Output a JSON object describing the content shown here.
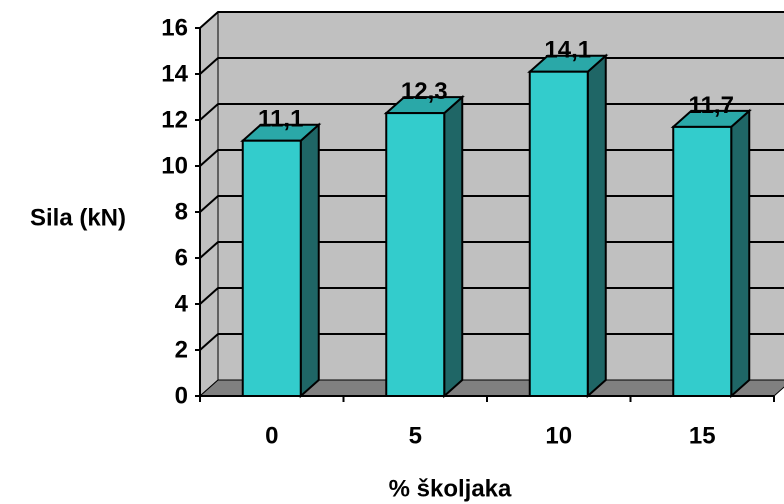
{
  "chart_data": {
    "type": "bar",
    "title": "",
    "xlabel": "% školjaka",
    "ylabel": "Sila (kN)",
    "categories": [
      "0",
      "5",
      "10",
      "15"
    ],
    "values": [
      11.1,
      12.3,
      14.1,
      11.7
    ],
    "data_labels": [
      "11,1",
      "12,3",
      "14,1",
      "11,7"
    ],
    "ylim": [
      0,
      16
    ],
    "yticks": [
      0,
      2,
      4,
      6,
      8,
      10,
      12,
      14,
      16
    ],
    "grid": true,
    "legend": "none",
    "style": "3d-column"
  },
  "colors": {
    "bar_front": "#33CCCC",
    "bar_side": "#1F6666",
    "bar_top": "#2AA8A8",
    "wall": "#C0C0C0",
    "floor": "#808080",
    "gridline": "#000000"
  }
}
